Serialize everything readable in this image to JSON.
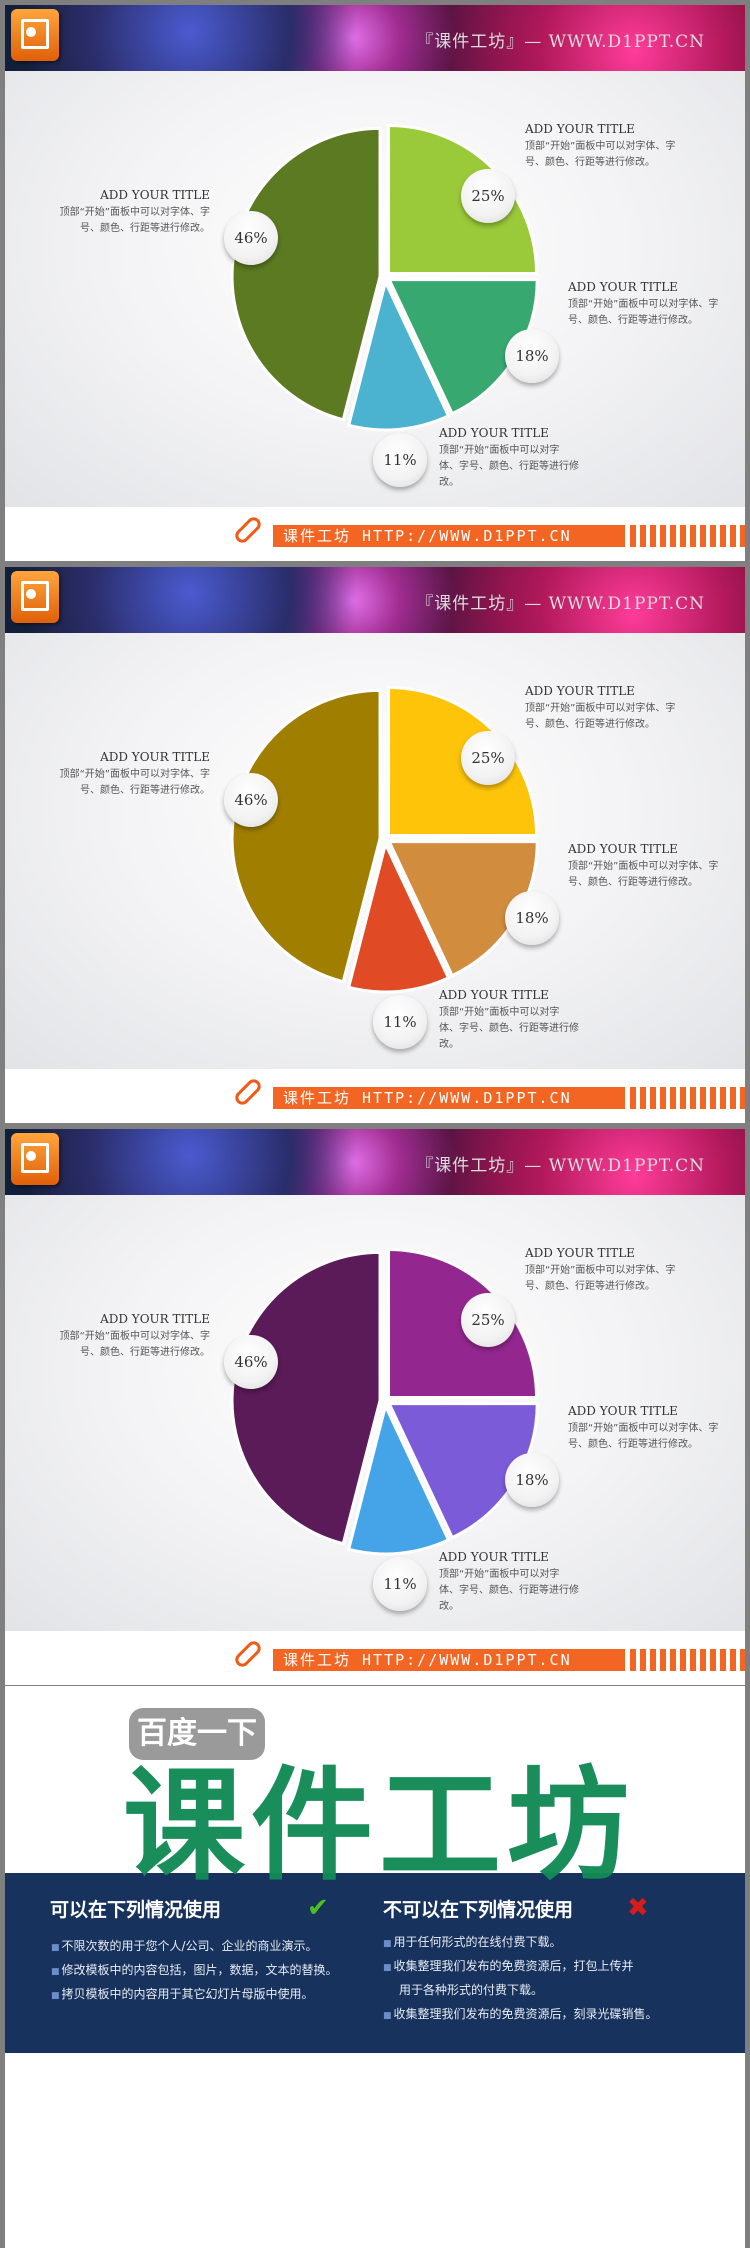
{
  "header_title": "『课件工坊』— WWW.D1PPT.CN",
  "footer_text": "课件工坊 HTTP://WWW.D1PPT.CN",
  "label_title": "ADD YOUR TITLE",
  "label_body": "顶部“开始”面板中可以对字体、字号、颜色、行距等进行修改。",
  "slides": [
    {
      "chart_data": {
        "type": "pie",
        "values": [
          25,
          18,
          11,
          46
        ],
        "labels": [
          "25%",
          "18%",
          "11%",
          "46%"
        ],
        "colors": [
          "#9ac93a",
          "#36a870",
          "#4bb2cf",
          "#5b7a22"
        ]
      }
    },
    {
      "chart_data": {
        "type": "pie",
        "values": [
          25,
          18,
          11,
          46
        ],
        "labels": [
          "25%",
          "18%",
          "11%",
          "46%"
        ],
        "colors": [
          "#fec40a",
          "#d28c3e",
          "#e04a24",
          "#a07e00"
        ]
      }
    },
    {
      "chart_data": {
        "type": "pie",
        "values": [
          25,
          18,
          11,
          46
        ],
        "labels": [
          "25%",
          "18%",
          "11%",
          "46%"
        ],
        "colors": [
          "#93278f",
          "#7b5bd8",
          "#45a3e8",
          "#5a1b58"
        ]
      }
    }
  ],
  "promo": {
    "pill": "百度一下",
    "brand": "课件工坊",
    "allowed_heading": "可以在下列情况使用",
    "allowed": [
      "不限次数的用于您个人/公司、企业的商业演示。",
      "修改模板中的内容包括，图片，数据，文本的替换。",
      "拷贝模板中的内容用于其它幻灯片母版中使用。"
    ],
    "forbidden_heading": "不可以在下列情况使用",
    "forbidden": [
      "用于任何形式的在线付费下载。",
      "收集整理我们发布的免费资源后，打包上传并",
      "用于各种形式的付费下载。",
      "收集整理我们发布的免费资源后，刻录光碟销售。"
    ]
  }
}
